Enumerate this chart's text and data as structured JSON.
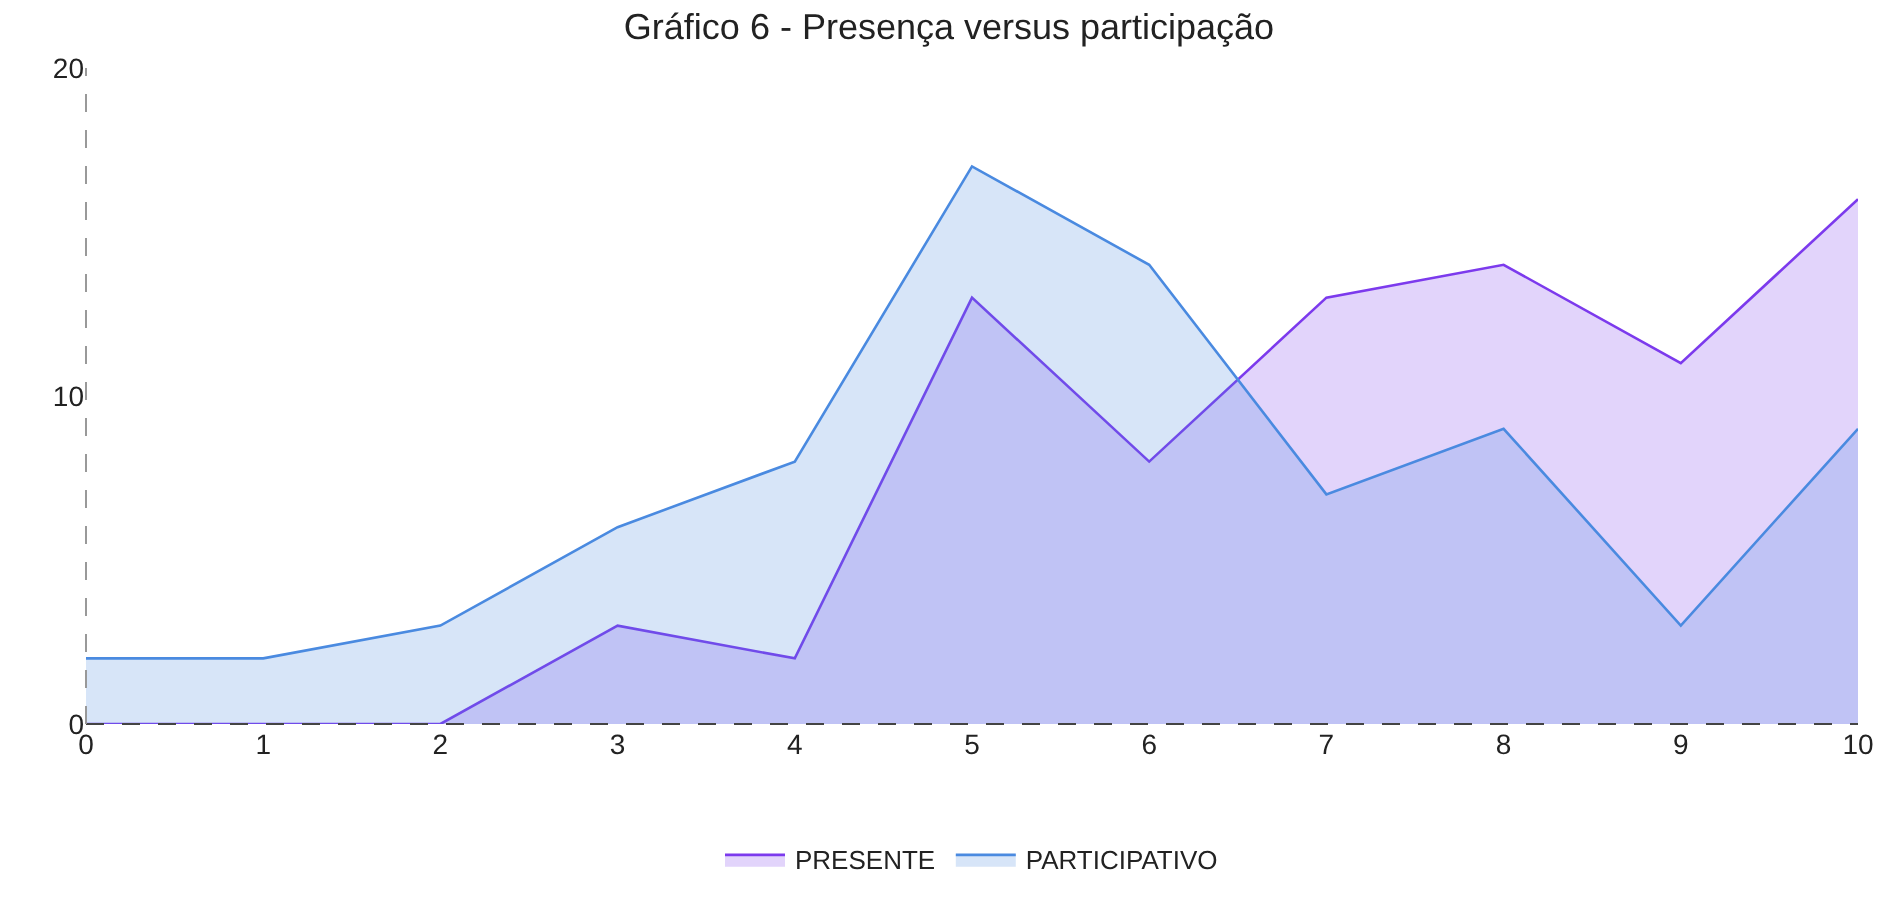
{
  "chart_data": {
    "type": "area",
    "title": "Gráfico 6 - Presença versus participação",
    "x": [
      0,
      1,
      2,
      3,
      4,
      5,
      6,
      7,
      8,
      9,
      10
    ],
    "series": [
      {
        "name": "PRESENTE",
        "color": "#7c3aed",
        "values": [
          0,
          0,
          0,
          3,
          2,
          13,
          8,
          13,
          14,
          11,
          16
        ]
      },
      {
        "name": "PARTICIPATIVO",
        "color": "#4a8ae0",
        "values": [
          2,
          2,
          3,
          6,
          8,
          17,
          14,
          7,
          9,
          3,
          9
        ]
      }
    ],
    "xlim": [
      0,
      10
    ],
    "xticks": [
      0,
      1,
      2,
      3,
      4,
      5,
      6,
      7,
      8,
      9,
      10
    ],
    "ylim": [
      0,
      20
    ],
    "yticks": [
      0,
      10,
      20
    ],
    "legend": "bottom",
    "marker": "none",
    "line_style": "solid"
  }
}
